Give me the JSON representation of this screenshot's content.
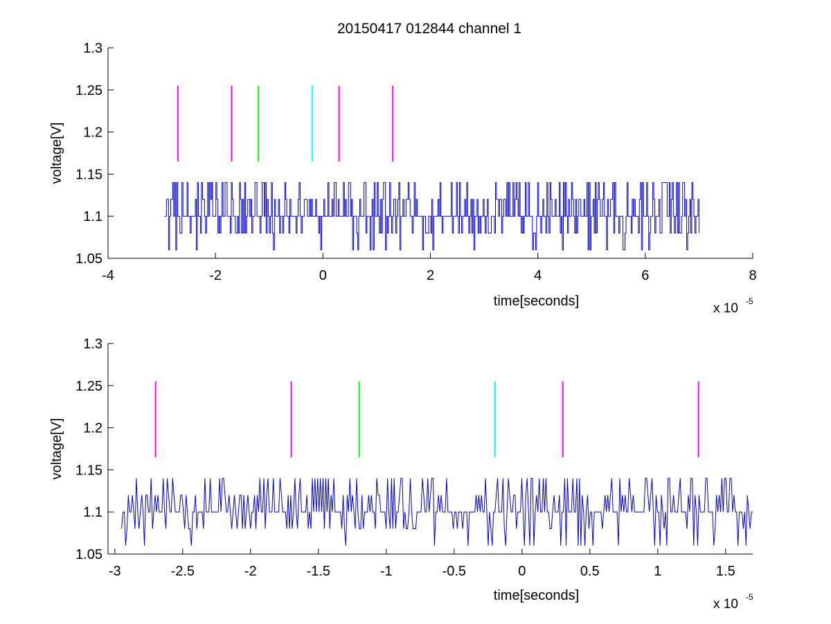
{
  "figure": {
    "title": "20150417 012844 channel 1"
  },
  "colors": {
    "signal": "#0000cc",
    "magenta": "#ff00ff",
    "green": "#00ff00",
    "cyan": "#00ffff",
    "axis": "#000000"
  },
  "chart_data": [
    {
      "type": "line",
      "name": "top-overview",
      "xlabel": "time[seconds]",
      "ylabel": "voltage[V]",
      "x_exponent_label": "x 10",
      "x_exponent_power": "-5",
      "x_scale": 1e-05,
      "xlim": [
        -4,
        8
      ],
      "ylim": [
        1.05,
        1.3
      ],
      "xticks": [
        "-4",
        "-2",
        "0",
        "2",
        "4",
        "6",
        "8"
      ],
      "xtick_values": [
        -4,
        -2,
        0,
        2,
        4,
        6,
        8
      ],
      "yticks": [
        "1.05",
        "1.1",
        "1.15",
        "1.2",
        "1.25",
        "1.3"
      ],
      "ytick_values": [
        1.05,
        1.1,
        1.15,
        1.2,
        1.25,
        1.3
      ],
      "signal": {
        "x_range": [
          -2.95,
          7.0
        ],
        "levels": [
          1.06,
          1.08,
          1.1,
          1.12,
          1.14
        ],
        "baseline": 1.1
      },
      "markers": [
        {
          "x": -2.7,
          "y": [
            1.165,
            1.255
          ],
          "color": "magenta"
        },
        {
          "x": -1.7,
          "y": [
            1.165,
            1.255
          ],
          "color": "magenta"
        },
        {
          "x": -1.2,
          "y": [
            1.165,
            1.255
          ],
          "color": "green"
        },
        {
          "x": -0.2,
          "y": [
            1.165,
            1.255
          ],
          "color": "cyan"
        },
        {
          "x": 0.3,
          "y": [
            1.165,
            1.255
          ],
          "color": "magenta"
        },
        {
          "x": 1.3,
          "y": [
            1.165,
            1.255
          ],
          "color": "magenta"
        }
      ],
      "grid": false
    },
    {
      "type": "line",
      "name": "bottom-zoom",
      "xlabel": "time[seconds]",
      "ylabel": "voltage[V]",
      "x_exponent_label": "x 10",
      "x_exponent_power": "-5",
      "x_scale": 1e-05,
      "xlim": [
        -3.05,
        1.7
      ],
      "ylim": [
        1.05,
        1.3
      ],
      "xticks": [
        "-3",
        "-2.5",
        "-2",
        "-1.5",
        "-1",
        "-0.5",
        "0",
        "0.5",
        "1",
        "1.5"
      ],
      "xtick_values": [
        -3,
        -2.5,
        -2,
        -1.5,
        -1,
        -0.5,
        0,
        0.5,
        1,
        1.5
      ],
      "yticks": [
        "1.05",
        "1.1",
        "1.15",
        "1.2",
        "1.25",
        "1.3"
      ],
      "ytick_values": [
        1.05,
        1.1,
        1.15,
        1.2,
        1.25,
        1.3
      ],
      "signal": {
        "x_range": [
          -2.95,
          1.7
        ],
        "levels": [
          1.06,
          1.08,
          1.1,
          1.12,
          1.14
        ],
        "baseline": 1.1
      },
      "markers": [
        {
          "x": -2.7,
          "y": [
            1.165,
            1.255
          ],
          "color": "magenta"
        },
        {
          "x": -1.7,
          "y": [
            1.165,
            1.255
          ],
          "color": "magenta"
        },
        {
          "x": -1.2,
          "y": [
            1.165,
            1.255
          ],
          "color": "green"
        },
        {
          "x": -0.2,
          "y": [
            1.165,
            1.255
          ],
          "color": "cyan"
        },
        {
          "x": 0.3,
          "y": [
            1.165,
            1.255
          ],
          "color": "magenta"
        },
        {
          "x": 1.3,
          "y": [
            1.165,
            1.255
          ],
          "color": "magenta"
        }
      ],
      "grid": false
    }
  ]
}
